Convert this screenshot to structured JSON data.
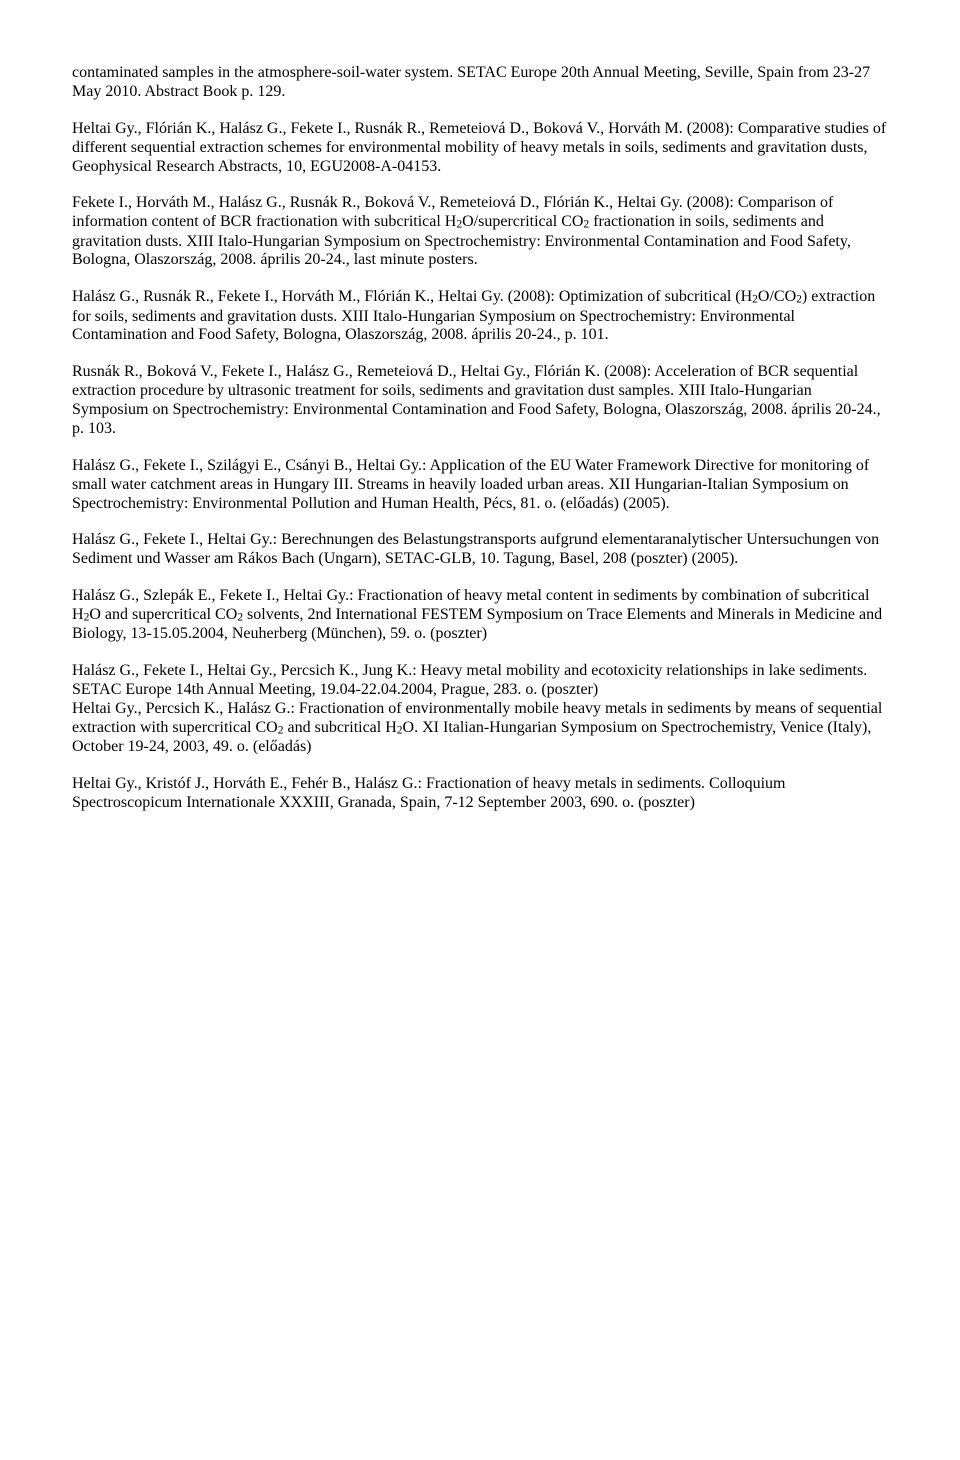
{
  "paragraphs": [
    "contaminated samples in the atmosphere-soil-water system. SETAC Europe 20th Annual Meeting, Seville, Spain from 23-27 May 2010. Abstract Book p. 129.",
    "Heltai Gy., Flórián K., Halász G., Fekete I., Rusnák R., Remeteiová D., Boková V., Horváth M. (2008): Comparative studies of different sequential extraction schemes for environmental mobility of heavy metals in soils, sediments and gravitation dusts, Geophysical Research Abstracts, 10, EGU2008-A-04153.",
    "Fekete I., Horváth M., Halász G., Rusnák R., Boková V., Remeteiová D., Flórián K., Heltai Gy. (2008): Comparison of information content of BCR fractionation with subcritical H<span class=\"sub\">2</span>O/supercritical CO<span class=\"sub\">2</span> fractionation in soils, sediments and gravitation dusts. XIII Italo-Hungarian Symposium on Spectrochemistry: Environmental Contamination and Food Safety, Bologna, Olaszország, 2008. április 20-24., last minute posters.",
    "Halász G., Rusnák R., Fekete I., Horváth M., Flórián K., Heltai Gy. (2008): Optimization of subcritical (H<span class=\"sub\">2</span>O/CO<span class=\"sub\">2</span>) extraction for soils, sediments and gravitation dusts. XIII Italo-Hungarian Symposium on Spectrochemistry: Environmental Contamination and Food Safety, Bologna, Olaszország, 2008. április 20-24., p. 101.",
    "Rusnák R., Boková V., Fekete I., Halász G., Remeteiová D., Heltai Gy., Flórián K. (2008): Acceleration of BCR sequential extraction procedure by ultrasonic treatment for soils, sediments and gravitation dust samples. XIII Italo-Hungarian Symposium on Spectrochemistry: Environmental Contamination and Food Safety, Bologna, Olaszország, 2008. április 20-24., p. 103.",
    "Halász G., Fekete I., Szilágyi E., Csányi B., Heltai Gy.: Application of the EU Water Framework Directive for monitoring of small water catchment areas in Hungary III. Streams in heavily loaded urban areas. XII Hungarian-Italian Symposium on Spectrochemistry: Environmental Pollution and Human Health, Pécs, 81. o. (előadás) (2005).",
    "Halász G., Fekete I., Heltai Gy.: Berechnungen des Belastungstransports aufgrund elementaranalytischer Untersuchungen von Sediment und Wasser am Rákos Bach (Ungarn), SETAC-GLB, 10. Tagung, Basel, 208 (poszter) (2005).",
    "Halász G., Szlepák E., Fekete I., Heltai Gy.: Fractionation of heavy metal content in sediments by combination of subcritical H<span class=\"sub\">2</span>O and supercritical CO<span class=\"sub\">2</span> solvents, 2nd International FESTEM Symposium on Trace Elements and Minerals in Medicine and Biology, 13-15.05.2004, Neuherberg (München), 59. o. (poszter)",
    "Halász G., Fekete I., Heltai Gy., Percsich K., Jung K.: Heavy metal mobility and ecotoxicity relationships in lake sediments. SETAC Europe 14th Annual Meeting, 19.04-22.04.2004, Prague, 283. o. (poszter)\nHeltai Gy., Percsich K., Halász G.: Fractionation of environmentally mobile heavy metals in sediments by means of sequential extraction with supercritical CO<span class=\"sub\">2</span> and subcritical H<span class=\"sub\">2</span>O. XI Italian-Hungarian Symposium on Spectrochemistry, Venice (Italy), October 19-24, 2003, 49. o. (előadás)",
    "Heltai Gy., Kristóf J., Horváth E., Fehér B., Halász G.: Fractionation of heavy metals in sediments. Colloquium Spectroscopicum Internationale XXXIII, Granada, Spain, 7-12 September 2003, 690. o. (poszter)"
  ],
  "typography": {
    "font_family": "Times New Roman",
    "font_size_pt": 12,
    "text_color": "#000000",
    "background_color": "#ffffff"
  }
}
